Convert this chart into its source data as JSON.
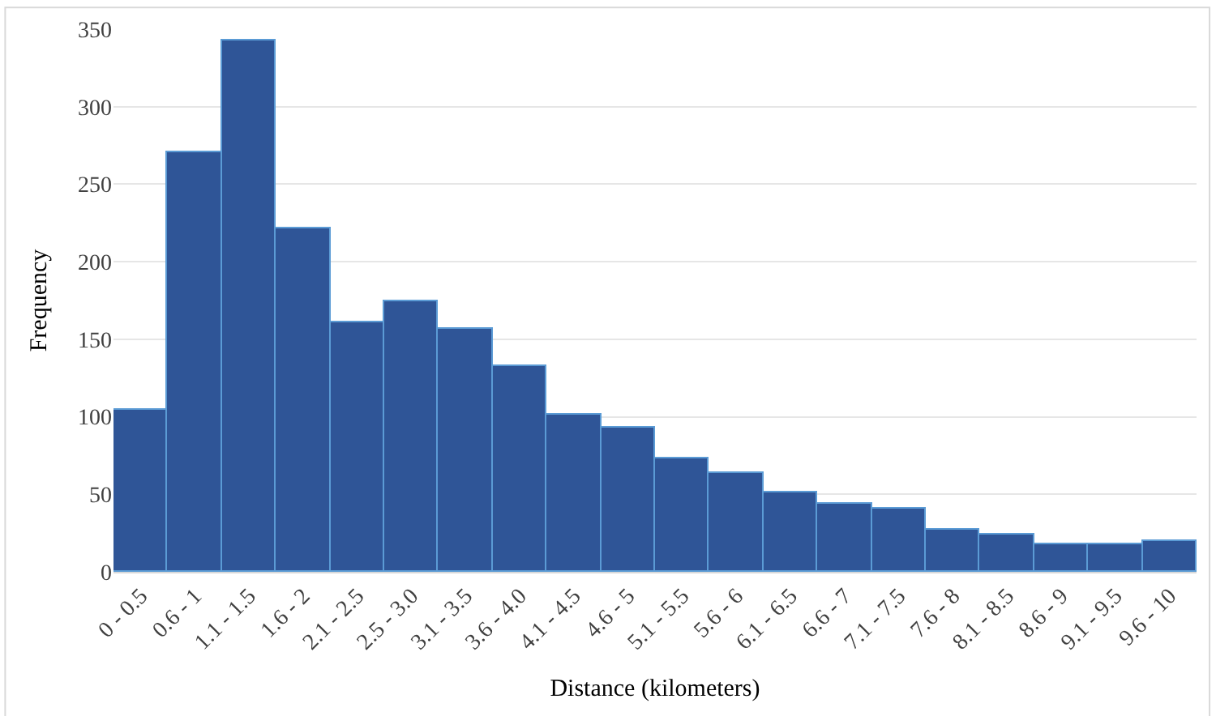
{
  "chart_data": {
    "type": "bar",
    "xlabel": "Distance (kilometers)",
    "ylabel": "Frequency",
    "categories": [
      "0 - 0.5",
      "0.6 - 1",
      "1.1 - 1.5",
      "1.6 - 2",
      "2.1 - 2.5",
      "2.5 - 3.0",
      "3.1 - 3.5",
      "3.6 - 4.0",
      "4.1 - 4.5",
      "4.6 - 5",
      "5.1 - 5.5",
      "5.6 - 6",
      "6.1 - 6.5",
      "6.6 - 7",
      "7.1 - 7.5",
      "7.6 - 8",
      "8.1 - 8.5",
      "8.6 - 9",
      "9.1 - 9.5",
      "9.6 - 10"
    ],
    "values": [
      105,
      271,
      343,
      221,
      161,
      175,
      157,
      133,
      101,
      93,
      73,
      64,
      51,
      44,
      41,
      27,
      24,
      18,
      18,
      20
    ],
    "color": "#2f5597",
    "ylim": [
      0,
      350
    ],
    "yticks": [
      0,
      50,
      100,
      150,
      200,
      250,
      300,
      350
    ],
    "grid": "y"
  }
}
